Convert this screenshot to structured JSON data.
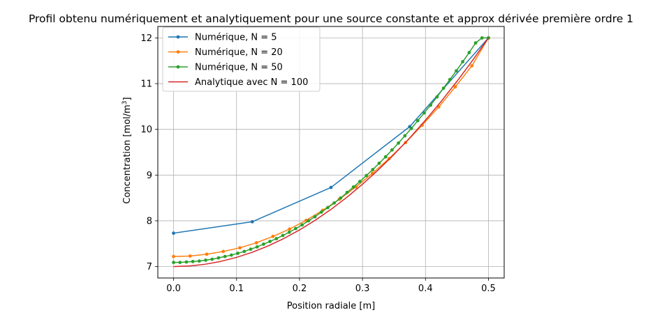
{
  "chart_data": {
    "type": "line",
    "title": "Profil obtenu numériquement et analytiquement pour une source constante et approx dérivée première ordre 1",
    "xlabel": "Position radiale [m]",
    "ylabel": "Concentration [mol/m³]",
    "xlim": [
      -0.025,
      0.525
    ],
    "ylim": [
      6.75,
      12.25
    ],
    "xticks": [
      "0.0",
      "0.1",
      "0.2",
      "0.3",
      "0.4",
      "0.5"
    ],
    "yticks": [
      "7",
      "8",
      "9",
      "10",
      "11",
      "12"
    ],
    "grid": true,
    "legend_position": "top-left",
    "series": [
      {
        "name": "Numérique, N = 5",
        "color": "#1f77b4",
        "marker": true,
        "x": [
          0.0,
          0.125,
          0.25,
          0.375,
          0.5
        ],
        "y": [
          7.73,
          7.98,
          8.73,
          10.06,
          12.0
        ]
      },
      {
        "name": "Numérique, N = 20",
        "color": "#ff7f0e",
        "marker": true,
        "x": [
          0.0,
          0.0263,
          0.0526,
          0.0789,
          0.1053,
          0.1316,
          0.1579,
          0.1842,
          0.2105,
          0.2368,
          0.2632,
          0.2895,
          0.3158,
          0.3421,
          0.3684,
          0.3947,
          0.4211,
          0.4474,
          0.4737,
          0.5
        ],
        "y": [
          7.22,
          7.23,
          7.27,
          7.33,
          7.41,
          7.52,
          7.66,
          7.82,
          8.01,
          8.23,
          8.47,
          8.74,
          9.04,
          9.36,
          9.71,
          10.09,
          10.49,
          10.93,
          11.39,
          12.0
        ]
      },
      {
        "name": "Numérique, N = 50",
        "color": "#2ca02c",
        "marker": true,
        "x": [
          0.0,
          0.0102,
          0.0204,
          0.0306,
          0.0408,
          0.051,
          0.0612,
          0.0714,
          0.0816,
          0.0918,
          0.102,
          0.1122,
          0.1224,
          0.1327,
          0.1429,
          0.1531,
          0.1633,
          0.1735,
          0.1837,
          0.1939,
          0.2041,
          0.2143,
          0.2245,
          0.2347,
          0.2449,
          0.2551,
          0.2653,
          0.2755,
          0.2857,
          0.2959,
          0.3061,
          0.3163,
          0.3265,
          0.3367,
          0.3469,
          0.3571,
          0.3673,
          0.3776,
          0.3878,
          0.398,
          0.4082,
          0.4184,
          0.4286,
          0.4388,
          0.449,
          0.4592,
          0.4694,
          0.4796,
          0.4898,
          0.5
        ],
        "y": [
          7.09,
          7.09,
          7.1,
          7.11,
          7.12,
          7.14,
          7.16,
          7.19,
          7.22,
          7.25,
          7.29,
          7.33,
          7.38,
          7.43,
          7.49,
          7.55,
          7.61,
          7.68,
          7.75,
          7.83,
          7.91,
          8.0,
          8.09,
          8.19,
          8.29,
          8.39,
          8.5,
          8.62,
          8.74,
          8.86,
          8.99,
          9.12,
          9.26,
          9.4,
          9.55,
          9.7,
          9.86,
          10.02,
          10.19,
          10.36,
          10.53,
          10.71,
          10.9,
          11.09,
          11.28,
          11.48,
          11.68,
          11.89,
          12.0,
          12.0
        ]
      },
      {
        "name": "Analytique avec N = 100",
        "color": "#d62728",
        "marker": false,
        "formula_note": "",
        "x": [
          0.0,
          0.025,
          0.05,
          0.075,
          0.1,
          0.125,
          0.15,
          0.175,
          0.2,
          0.225,
          0.25,
          0.275,
          0.3,
          0.325,
          0.35,
          0.375,
          0.4,
          0.425,
          0.45,
          0.475,
          0.5
        ],
        "y": [
          7.0,
          7.0125,
          7.05,
          7.1125,
          7.2,
          7.3125,
          7.45,
          7.6125,
          7.8,
          8.0125,
          8.25,
          8.5125,
          8.8,
          9.1125,
          9.45,
          9.8125,
          10.2,
          10.6125,
          11.05,
          11.5125,
          12.0
        ]
      }
    ]
  }
}
